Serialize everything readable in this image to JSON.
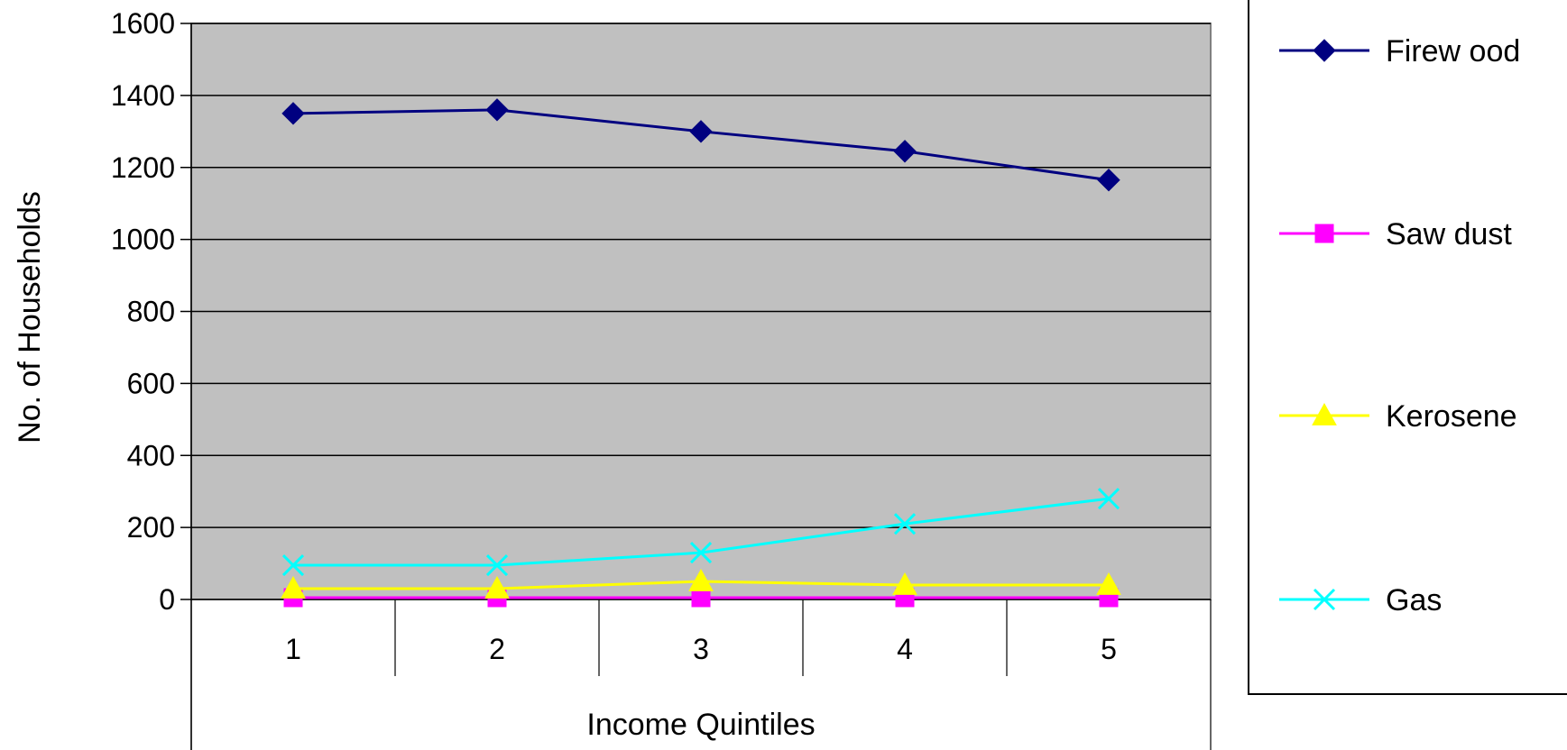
{
  "chart_data": {
    "type": "line",
    "title": "",
    "xlabel": "Income Quintiles",
    "ylabel": "No. of Households",
    "categories": [
      "1",
      "2",
      "3",
      "4",
      "5"
    ],
    "ylim": [
      0,
      1600
    ],
    "yticks": [
      "0",
      "200",
      "400",
      "600",
      "800",
      "1000",
      "1200",
      "1400",
      "1600"
    ],
    "grid": true,
    "legend_position": "right",
    "plot_background": "#c0c0c0",
    "series": [
      {
        "name": "Firew ood",
        "values": [
          1350,
          1360,
          1300,
          1245,
          1165
        ],
        "color": "#000080",
        "marker": "diamond"
      },
      {
        "name": "Saw  dust",
        "values": [
          5,
          5,
          5,
          5,
          5
        ],
        "color": "#ff00ff",
        "marker": "square"
      },
      {
        "name": "Kerosene",
        "values": [
          30,
          30,
          50,
          40,
          40
        ],
        "color": "#ffff00",
        "marker": "triangle"
      },
      {
        "name": "Gas",
        "values": [
          95,
          95,
          130,
          210,
          280
        ],
        "color": "#00ffff",
        "marker": "x"
      }
    ]
  }
}
